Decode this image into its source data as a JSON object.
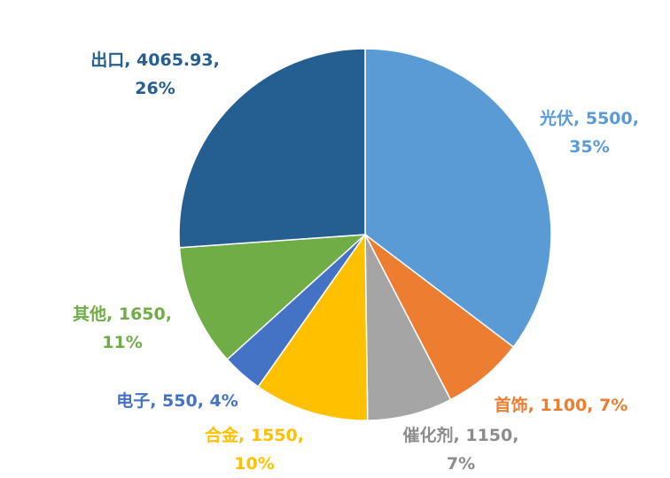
{
  "chart_data": {
    "type": "pie",
    "categories": [
      "光伏",
      "首饰",
      "催化剂",
      "合金",
      "电子",
      "其他",
      "出口"
    ],
    "values": [
      5500,
      1100,
      1150,
      1550,
      550,
      1650,
      4065.93
    ],
    "value_labels": [
      "光伏, 5500, 35%",
      "首饰, 1100, 7%",
      "催化剂, 1150, 7%",
      "合金, 1550, 10%",
      "电子, 550, 4%",
      "其他, 1650, 11%",
      "出口, 4065.93, 26%"
    ],
    "colors": [
      "#5b9bd5",
      "#ed7d31",
      "#a5a5a5",
      "#ffc000",
      "#4472c4",
      "#70ad47",
      "#255e91"
    ]
  }
}
